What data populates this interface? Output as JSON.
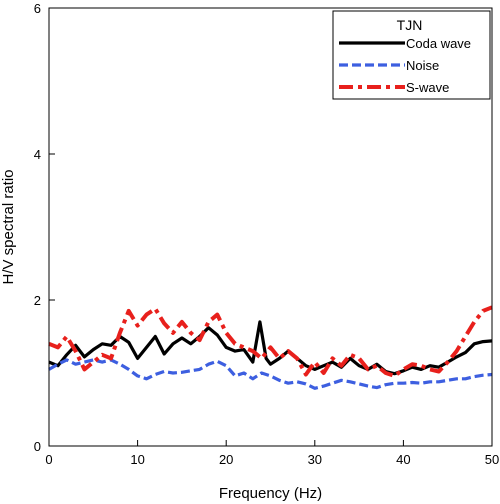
{
  "chart_data": {
    "type": "line",
    "title": "",
    "xlabel": "Frequency (Hz)",
    "ylabel": "H/V spectral ratio",
    "xlim": [
      0,
      50
    ],
    "ylim": [
      0,
      6
    ],
    "xticks": [
      0,
      10,
      20,
      30,
      40,
      50
    ],
    "yticks": [
      0,
      2,
      4,
      6
    ],
    "grid": false,
    "legend": {
      "title": "TJN",
      "placement": "top-right"
    },
    "series": [
      {
        "name": "Coda wave",
        "color": "#000000",
        "style": "solid",
        "points": [
          [
            0,
            1.15
          ],
          [
            1,
            1.1
          ],
          [
            2,
            1.25
          ],
          [
            3,
            1.38
          ],
          [
            4,
            1.22
          ],
          [
            5,
            1.32
          ],
          [
            6,
            1.4
          ],
          [
            7,
            1.38
          ],
          [
            8,
            1.5
          ],
          [
            9,
            1.42
          ],
          [
            10,
            1.2
          ],
          [
            11,
            1.35
          ],
          [
            12,
            1.5
          ],
          [
            13,
            1.26
          ],
          [
            14,
            1.4
          ],
          [
            15,
            1.48
          ],
          [
            16,
            1.4
          ],
          [
            17,
            1.5
          ],
          [
            18,
            1.62
          ],
          [
            19,
            1.52
          ],
          [
            20,
            1.35
          ],
          [
            21,
            1.3
          ],
          [
            22,
            1.32
          ],
          [
            23,
            1.15
          ],
          [
            23.8,
            1.7
          ],
          [
            24.5,
            1.2
          ],
          [
            25,
            1.12
          ],
          [
            26,
            1.2
          ],
          [
            27,
            1.3
          ],
          [
            28,
            1.2
          ],
          [
            29,
            1.1
          ],
          [
            30,
            1.05
          ],
          [
            31,
            1.1
          ],
          [
            32,
            1.15
          ],
          [
            33,
            1.08
          ],
          [
            34,
            1.2
          ],
          [
            35,
            1.1
          ],
          [
            36,
            1.05
          ],
          [
            37,
            1.12
          ],
          [
            38,
            1.02
          ],
          [
            39,
            0.99
          ],
          [
            40,
            1.03
          ],
          [
            41,
            1.08
          ],
          [
            42,
            1.05
          ],
          [
            43,
            1.1
          ],
          [
            44,
            1.08
          ],
          [
            45,
            1.15
          ],
          [
            46,
            1.22
          ],
          [
            47,
            1.28
          ],
          [
            48,
            1.4
          ],
          [
            49,
            1.43
          ],
          [
            50,
            1.44
          ]
        ]
      },
      {
        "name": "Noise",
        "color": "#3d5fe0",
        "style": "dashed",
        "points": [
          [
            0,
            1.05
          ],
          [
            1,
            1.12
          ],
          [
            2,
            1.18
          ],
          [
            3,
            1.12
          ],
          [
            4,
            1.15
          ],
          [
            5,
            1.18
          ],
          [
            6,
            1.15
          ],
          [
            7,
            1.18
          ],
          [
            8,
            1.12
          ],
          [
            9,
            1.05
          ],
          [
            10,
            0.96
          ],
          [
            11,
            0.92
          ],
          [
            12,
            0.98
          ],
          [
            13,
            1.02
          ],
          [
            14,
            1.0
          ],
          [
            15,
            1.01
          ],
          [
            16,
            1.03
          ],
          [
            17,
            1.05
          ],
          [
            18,
            1.12
          ],
          [
            19,
            1.16
          ],
          [
            20,
            1.1
          ],
          [
            21,
            0.96
          ],
          [
            22,
            1.0
          ],
          [
            23,
            0.92
          ],
          [
            24,
            1.0
          ],
          [
            25,
            0.96
          ],
          [
            26,
            0.9
          ],
          [
            27,
            0.86
          ],
          [
            28,
            0.88
          ],
          [
            29,
            0.85
          ],
          [
            30,
            0.79
          ],
          [
            31,
            0.82
          ],
          [
            32,
            0.86
          ],
          [
            33,
            0.9
          ],
          [
            34,
            0.88
          ],
          [
            35,
            0.85
          ],
          [
            36,
            0.82
          ],
          [
            37,
            0.8
          ],
          [
            38,
            0.84
          ],
          [
            39,
            0.86
          ],
          [
            40,
            0.86
          ],
          [
            41,
            0.87
          ],
          [
            42,
            0.86
          ],
          [
            43,
            0.88
          ],
          [
            44,
            0.88
          ],
          [
            45,
            0.9
          ],
          [
            46,
            0.92
          ],
          [
            47,
            0.92
          ],
          [
            48,
            0.95
          ],
          [
            49,
            0.97
          ],
          [
            50,
            0.98
          ]
        ]
      },
      {
        "name": "S-wave",
        "color": "#e8201c",
        "style": "dashdot",
        "points": [
          [
            0,
            1.4
          ],
          [
            1,
            1.35
          ],
          [
            2,
            1.5
          ],
          [
            3,
            1.3
          ],
          [
            4,
            1.05
          ],
          [
            5,
            1.15
          ],
          [
            6,
            1.25
          ],
          [
            7,
            1.2
          ],
          [
            8,
            1.55
          ],
          [
            9,
            1.85
          ],
          [
            10,
            1.65
          ],
          [
            11,
            1.8
          ],
          [
            12,
            1.88
          ],
          [
            13,
            1.68
          ],
          [
            14,
            1.55
          ],
          [
            15,
            1.7
          ],
          [
            16,
            1.55
          ],
          [
            17,
            1.45
          ],
          [
            18,
            1.7
          ],
          [
            19,
            1.8
          ],
          [
            20,
            1.55
          ],
          [
            21,
            1.4
          ],
          [
            22,
            1.35
          ],
          [
            23,
            1.3
          ],
          [
            24,
            1.2
          ],
          [
            25,
            1.35
          ],
          [
            26,
            1.2
          ],
          [
            27,
            1.3
          ],
          [
            28,
            1.2
          ],
          [
            29,
            0.98
          ],
          [
            30,
            1.15
          ],
          [
            31,
            1.0
          ],
          [
            32,
            1.2
          ],
          [
            33,
            1.1
          ],
          [
            34,
            1.25
          ],
          [
            35,
            1.2
          ],
          [
            36,
            1.05
          ],
          [
            37,
            1.1
          ],
          [
            38,
            1.0
          ],
          [
            39,
            0.96
          ],
          [
            40,
            1.05
          ],
          [
            41,
            1.12
          ],
          [
            42,
            1.1
          ],
          [
            43,
            1.05
          ],
          [
            44,
            1.02
          ],
          [
            45,
            1.15
          ],
          [
            46,
            1.3
          ],
          [
            47,
            1.5
          ],
          [
            48,
            1.7
          ],
          [
            49,
            1.85
          ],
          [
            50,
            1.9
          ]
        ]
      }
    ]
  }
}
